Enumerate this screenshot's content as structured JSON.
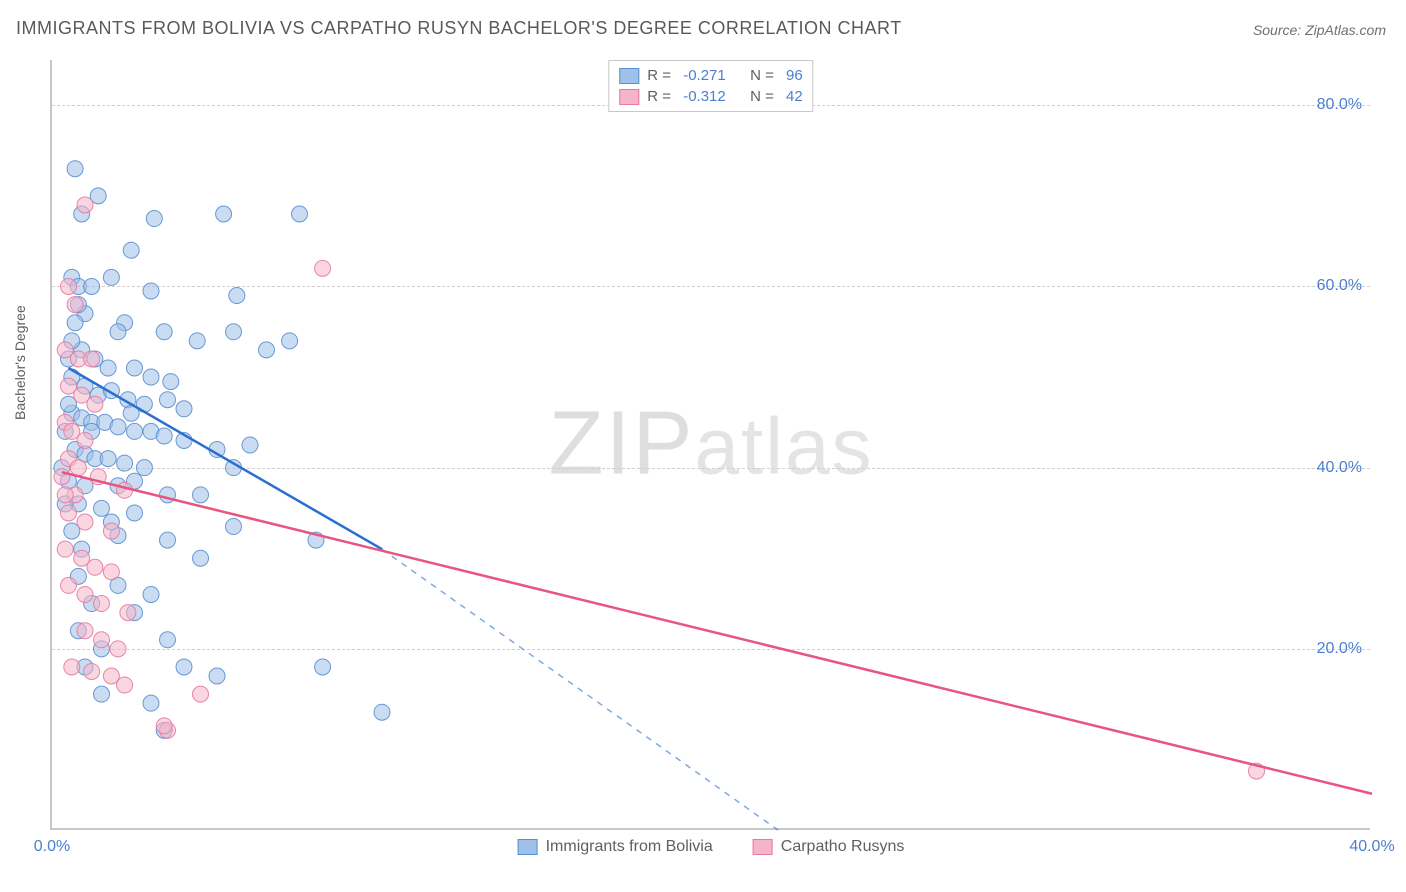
{
  "title": "IMMIGRANTS FROM BOLIVIA VS CARPATHO RUSYN BACHELOR'S DEGREE CORRELATION CHART",
  "source_label": "Source: ",
  "source_name": "ZipAtlas.com",
  "ylabel": "Bachelor's Degree",
  "watermark_bold": "ZIP",
  "watermark_rest": "atlas",
  "chart": {
    "type": "scatter",
    "background_color": "#ffffff",
    "grid_color": "#d0d0d0",
    "axis_color": "#c8c8c8",
    "xlim": [
      0,
      40
    ],
    "ylim": [
      0,
      85
    ],
    "xticks": [
      0.0,
      40.0
    ],
    "xtick_labels": [
      "0.0%",
      "40.0%"
    ],
    "yticks": [
      20.0,
      40.0,
      60.0,
      80.0
    ],
    "ytick_labels": [
      "20.0%",
      "40.0%",
      "60.0%",
      "80.0%"
    ],
    "tick_fontsize": 16,
    "tick_color": "#4a7fd0",
    "label_fontsize": 14,
    "label_color": "#606060",
    "marker_radius": 8,
    "marker_opacity": 0.55,
    "marker_stroke_opacity": 0.9,
    "line_width": 2.5,
    "series": [
      {
        "name": "Immigrants from Bolivia",
        "color_fill": "#9fc0e8",
        "color_stroke": "#5a8fd0",
        "line_color": "#2a6fd0",
        "R": "-0.271",
        "N": "96",
        "trend": {
          "x1": 0.5,
          "y1": 51,
          "x2": 10,
          "y2": 31,
          "x2_ext": 22,
          "y2_ext": 0,
          "dash_from_x": 10
        },
        "points": [
          [
            0.7,
            73
          ],
          [
            1.4,
            70
          ],
          [
            0.9,
            68
          ],
          [
            3.1,
            67.5
          ],
          [
            5.2,
            68
          ],
          [
            7.5,
            68
          ],
          [
            2.4,
            64
          ],
          [
            0.6,
            61
          ],
          [
            0.8,
            60
          ],
          [
            1.2,
            60
          ],
          [
            1.8,
            61
          ],
          [
            3.0,
            59.5
          ],
          [
            5.6,
            59
          ],
          [
            1.0,
            57
          ],
          [
            2.2,
            56
          ],
          [
            2.0,
            55
          ],
          [
            3.4,
            55
          ],
          [
            4.4,
            54
          ],
          [
            5.5,
            55
          ],
          [
            6.5,
            53
          ],
          [
            7.2,
            54
          ],
          [
            0.5,
            52
          ],
          [
            0.9,
            53
          ],
          [
            1.3,
            52
          ],
          [
            1.7,
            51
          ],
          [
            2.5,
            51
          ],
          [
            3.0,
            50
          ],
          [
            3.6,
            49.5
          ],
          [
            1.0,
            49
          ],
          [
            1.4,
            48
          ],
          [
            1.8,
            48.5
          ],
          [
            2.3,
            47.5
          ],
          [
            2.8,
            47
          ],
          [
            3.5,
            47.5
          ],
          [
            4.0,
            46.5
          ],
          [
            0.6,
            46
          ],
          [
            0.9,
            45.5
          ],
          [
            1.2,
            45
          ],
          [
            1.6,
            45
          ],
          [
            2.0,
            44.5
          ],
          [
            2.5,
            44
          ],
          [
            3.0,
            44
          ],
          [
            3.4,
            43.5
          ],
          [
            4.0,
            43
          ],
          [
            5.0,
            42
          ],
          [
            6.0,
            42.5
          ],
          [
            0.7,
            42
          ],
          [
            1.0,
            41.5
          ],
          [
            1.3,
            41
          ],
          [
            1.7,
            41
          ],
          [
            2.2,
            40.5
          ],
          [
            2.8,
            40
          ],
          [
            5.5,
            40
          ],
          [
            0.5,
            38.5
          ],
          [
            1.0,
            38
          ],
          [
            2.0,
            38
          ],
          [
            3.5,
            37
          ],
          [
            4.5,
            37
          ],
          [
            0.8,
            36
          ],
          [
            1.5,
            35.5
          ],
          [
            2.5,
            35
          ],
          [
            5.5,
            33.5
          ],
          [
            0.6,
            33
          ],
          [
            2.0,
            32.5
          ],
          [
            3.5,
            32
          ],
          [
            8.0,
            32
          ],
          [
            0.8,
            28
          ],
          [
            2.0,
            27
          ],
          [
            3.0,
            26
          ],
          [
            3.5,
            21
          ],
          [
            1.0,
            18
          ],
          [
            4.0,
            18
          ],
          [
            5.0,
            17
          ],
          [
            8.2,
            18
          ],
          [
            1.5,
            15
          ],
          [
            3.0,
            14
          ],
          [
            10.0,
            13
          ],
          [
            3.4,
            11
          ],
          [
            2.5,
            38.5
          ],
          [
            1.8,
            34
          ],
          [
            0.9,
            31
          ],
          [
            4.5,
            30
          ],
          [
            1.2,
            25
          ],
          [
            2.5,
            24
          ],
          [
            0.8,
            22
          ],
          [
            1.5,
            20
          ],
          [
            0.6,
            54
          ],
          [
            0.4,
            44
          ],
          [
            0.3,
            40
          ],
          [
            0.4,
            36
          ],
          [
            0.5,
            47
          ],
          [
            0.6,
            50
          ],
          [
            0.7,
            56
          ],
          [
            0.8,
            58
          ],
          [
            2.4,
            46
          ],
          [
            1.2,
            44
          ]
        ]
      },
      {
        "name": "Carpatho Rusyns",
        "color_fill": "#f5b4c8",
        "color_stroke": "#e8799f",
        "line_color": "#e8557f",
        "R": "-0.312",
        "N": "42",
        "trend": {
          "x1": 0.3,
          "y1": 39.5,
          "x2": 40,
          "y2": 4,
          "x2_ext": 40,
          "y2_ext": 4,
          "dash_from_x": 999
        },
        "points": [
          [
            1.0,
            69
          ],
          [
            0.5,
            60
          ],
          [
            0.7,
            58
          ],
          [
            8.2,
            62
          ],
          [
            0.4,
            53
          ],
          [
            0.8,
            52
          ],
          [
            1.2,
            52
          ],
          [
            0.5,
            49
          ],
          [
            0.9,
            48
          ],
          [
            1.3,
            47
          ],
          [
            0.4,
            45
          ],
          [
            0.6,
            44
          ],
          [
            1.0,
            43
          ],
          [
            0.5,
            41
          ],
          [
            0.8,
            40
          ],
          [
            1.4,
            39
          ],
          [
            2.2,
            37.5
          ],
          [
            0.7,
            37
          ],
          [
            0.5,
            35
          ],
          [
            1.0,
            34
          ],
          [
            1.8,
            33
          ],
          [
            0.4,
            31
          ],
          [
            0.9,
            30
          ],
          [
            1.3,
            29
          ],
          [
            1.8,
            28.5
          ],
          [
            0.5,
            27
          ],
          [
            1.0,
            26
          ],
          [
            1.5,
            25
          ],
          [
            2.3,
            24
          ],
          [
            1.0,
            22
          ],
          [
            1.5,
            21
          ],
          [
            2.0,
            20
          ],
          [
            0.6,
            18
          ],
          [
            1.2,
            17.5
          ],
          [
            1.8,
            17
          ],
          [
            2.2,
            16
          ],
          [
            4.5,
            15
          ],
          [
            3.5,
            11
          ],
          [
            3.4,
            11.5
          ],
          [
            36.5,
            6.5
          ],
          [
            0.3,
            39
          ],
          [
            0.4,
            37
          ]
        ]
      }
    ]
  },
  "legend_top": {
    "r_label": "R = ",
    "n_label": "N = "
  }
}
